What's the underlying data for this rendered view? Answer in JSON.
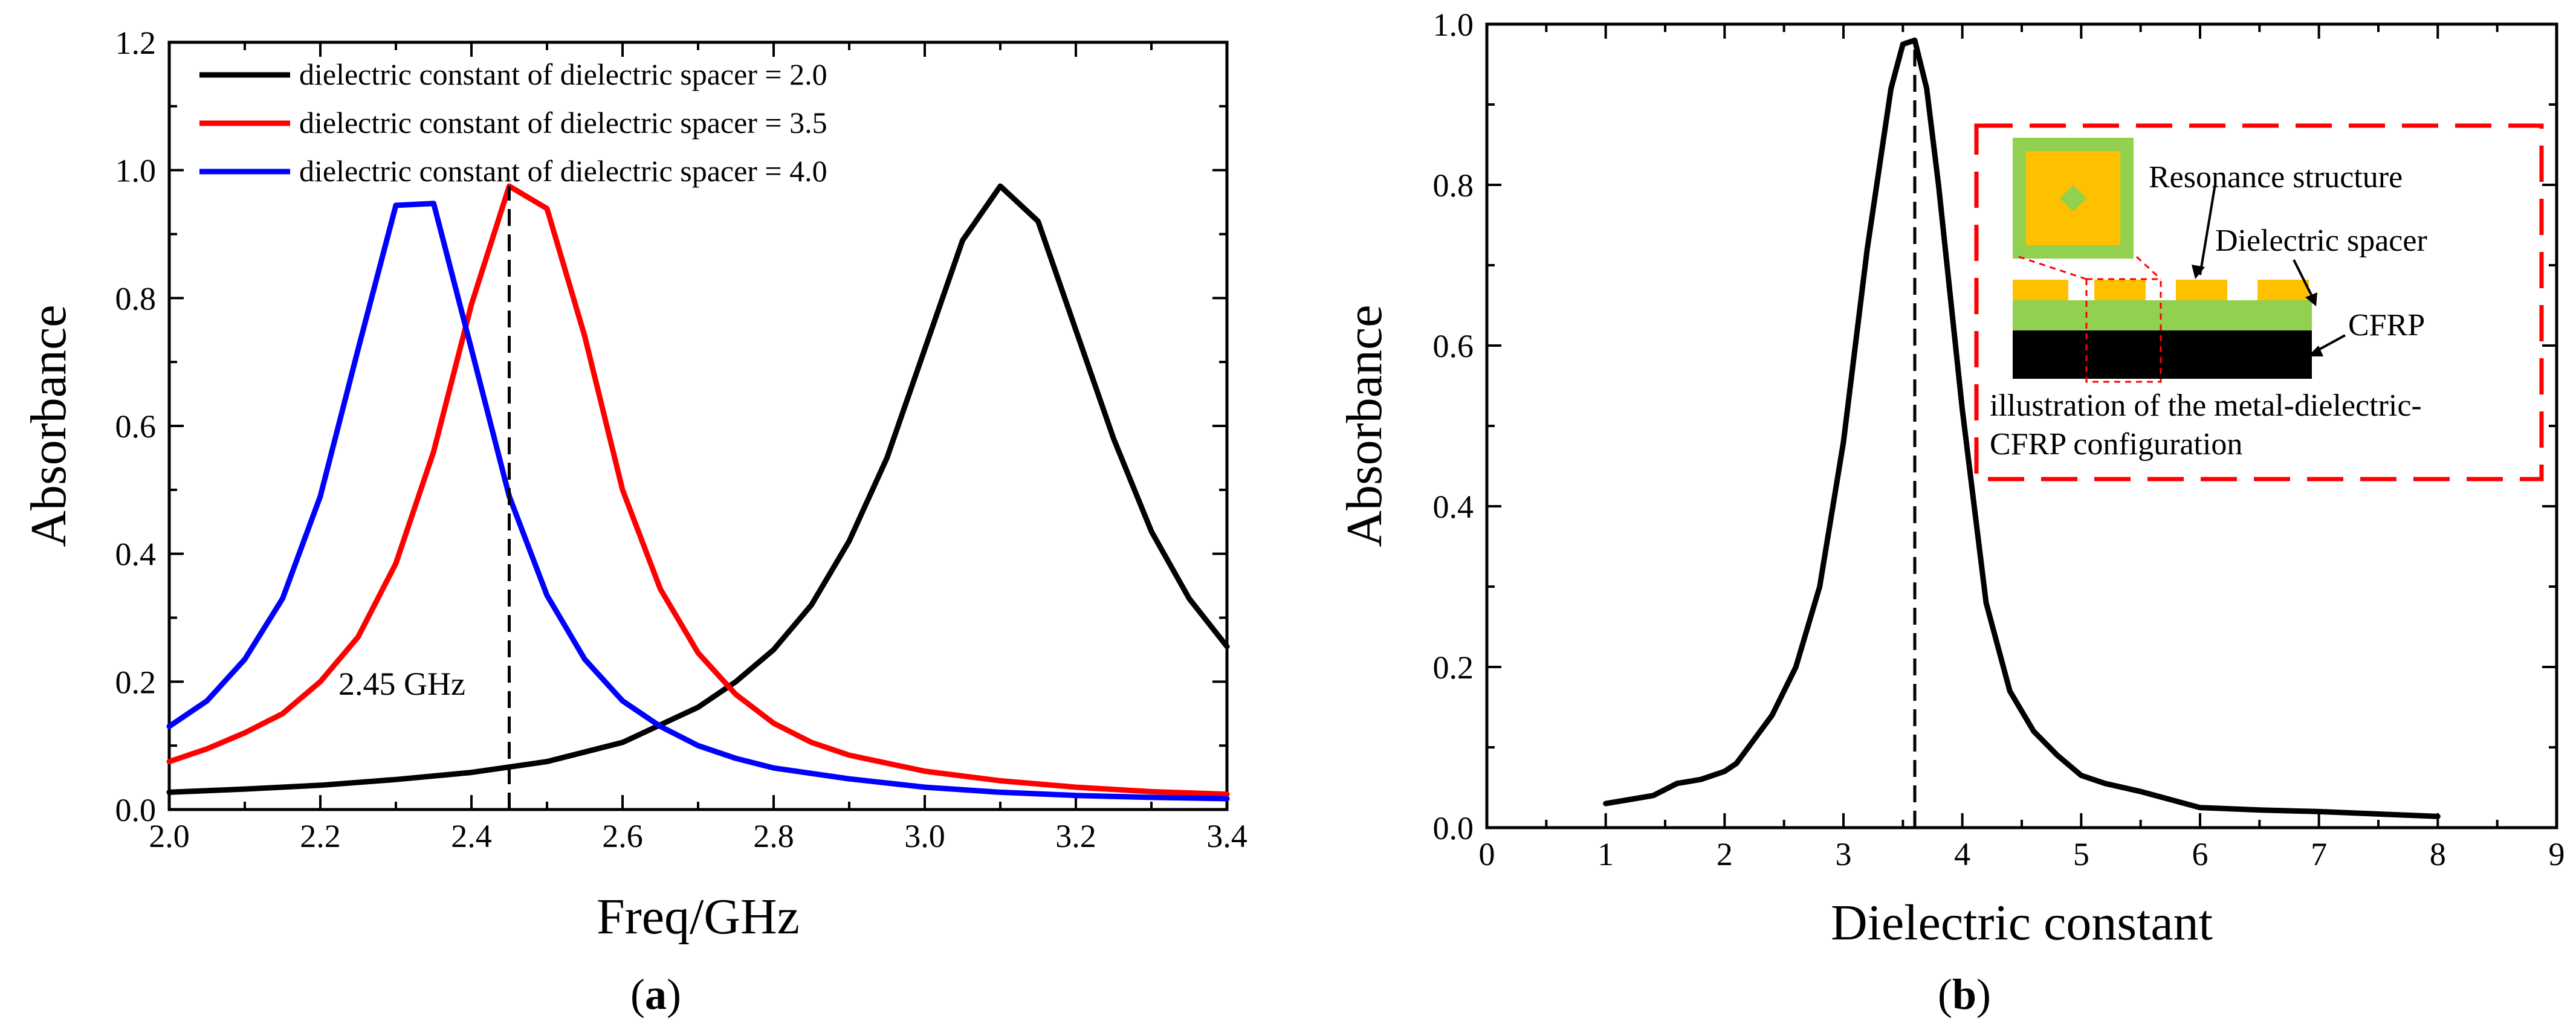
{
  "chart_data": [
    {
      "type": "line",
      "panel_label": "a",
      "xlabel": "Freq/GHz",
      "ylabel": "Absorbance",
      "xlim": [
        2.0,
        3.4
      ],
      "ylim": [
        0.0,
        1.2
      ],
      "xticks": [
        "2.0",
        "2.2",
        "2.4",
        "2.6",
        "2.8",
        "3.0",
        "3.2",
        "3.4"
      ],
      "yticks": [
        "0.0",
        "0.2",
        "0.4",
        "0.6",
        "0.8",
        "1.0",
        "1.2"
      ],
      "legend_position": "top-left",
      "series": [
        {
          "name": "dielectric constant of dielectric spacer = 2.0",
          "color": "#000000",
          "x": [
            2.0,
            2.1,
            2.2,
            2.3,
            2.4,
            2.5,
            2.6,
            2.7,
            2.75,
            2.8,
            2.85,
            2.9,
            2.95,
            3.0,
            3.05,
            3.1,
            3.15,
            3.2,
            3.25,
            3.3,
            3.35,
            3.4
          ],
          "y": [
            0.027,
            0.032,
            0.038,
            0.047,
            0.058,
            0.075,
            0.105,
            0.16,
            0.2,
            0.25,
            0.32,
            0.42,
            0.55,
            0.72,
            0.89,
            0.975,
            0.92,
            0.75,
            0.58,
            0.435,
            0.33,
            0.255
          ]
        },
        {
          "name": "dielectric constant of dielectric spacer = 3.5",
          "color": "#ff0000",
          "x": [
            2.0,
            2.05,
            2.1,
            2.15,
            2.2,
            2.25,
            2.3,
            2.35,
            2.4,
            2.45,
            2.5,
            2.55,
            2.6,
            2.65,
            2.7,
            2.75,
            2.8,
            2.85,
            2.9,
            3.0,
            3.1,
            3.2,
            3.3,
            3.4
          ],
          "y": [
            0.075,
            0.095,
            0.12,
            0.15,
            0.2,
            0.27,
            0.385,
            0.56,
            0.79,
            0.975,
            0.94,
            0.74,
            0.5,
            0.345,
            0.245,
            0.18,
            0.135,
            0.105,
            0.085,
            0.06,
            0.045,
            0.035,
            0.028,
            0.024
          ]
        },
        {
          "name": "dielectric constant of dielectric spacer = 4.0",
          "color": "#0000ff",
          "x": [
            2.0,
            2.05,
            2.1,
            2.15,
            2.2,
            2.25,
            2.3,
            2.35,
            2.4,
            2.45,
            2.5,
            2.55,
            2.6,
            2.65,
            2.7,
            2.75,
            2.8,
            2.9,
            3.0,
            3.1,
            3.2,
            3.3,
            3.4
          ],
          "y": [
            0.13,
            0.17,
            0.235,
            0.33,
            0.49,
            0.72,
            0.945,
            0.948,
            0.72,
            0.49,
            0.335,
            0.235,
            0.17,
            0.13,
            0.1,
            0.08,
            0.065,
            0.048,
            0.035,
            0.027,
            0.022,
            0.019,
            0.017
          ]
        }
      ],
      "annotations": [
        {
          "text": "2.45 GHz",
          "x": 2.45,
          "style": "vertical dashed line"
        }
      ]
    },
    {
      "type": "line",
      "panel_label": "b",
      "xlabel": "Dielectric constant",
      "ylabel": "Absorbance",
      "xlim": [
        0,
        9
      ],
      "ylim": [
        0.0,
        1.0
      ],
      "xticks": [
        "0",
        "1",
        "2",
        "3",
        "4",
        "5",
        "6",
        "7",
        "8",
        "9"
      ],
      "yticks": [
        "0.0",
        "0.2",
        "0.4",
        "0.6",
        "0.8",
        "1.0"
      ],
      "series": [
        {
          "name": "Absorbance",
          "color": "#000000",
          "x": [
            1.0,
            1.2,
            1.4,
            1.6,
            1.8,
            2.0,
            2.1,
            2.2,
            2.4,
            2.6,
            2.8,
            3.0,
            3.2,
            3.4,
            3.5,
            3.6,
            3.7,
            3.8,
            4.0,
            4.2,
            4.4,
            4.6,
            4.8,
            5.0,
            5.2,
            5.5,
            6.0,
            6.5,
            7.0,
            7.5,
            8.0
          ],
          "y": [
            0.03,
            0.035,
            0.04,
            0.055,
            0.06,
            0.07,
            0.08,
            0.1,
            0.14,
            0.2,
            0.3,
            0.48,
            0.72,
            0.92,
            0.975,
            0.98,
            0.92,
            0.8,
            0.52,
            0.28,
            0.17,
            0.12,
            0.09,
            0.065,
            0.055,
            0.045,
            0.025,
            0.022,
            0.02,
            0.017,
            0.014
          ]
        }
      ],
      "annotations": [
        {
          "text": "",
          "x": 3.6,
          "style": "vertical dashed line"
        }
      ],
      "inset": {
        "labels": {
          "resonance": "Resonance structure",
          "spacer": "Dielectric spacer",
          "cfrp": "CFRP",
          "caption_line1": "illustration of the metal-dielectric-",
          "caption_line2": "CFRP configuration"
        },
        "colors": {
          "metal": "#ffc000",
          "spacer": "#92d050",
          "cfrp": "#000000",
          "border": "#ff0000"
        }
      }
    }
  ]
}
